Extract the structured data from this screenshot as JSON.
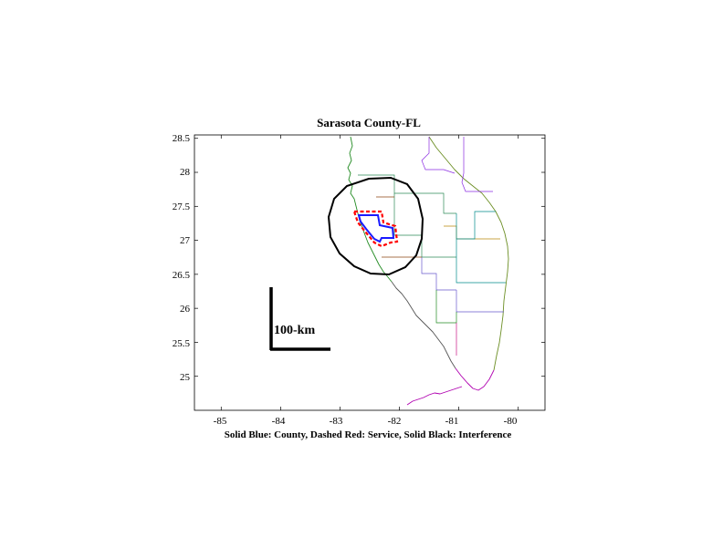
{
  "title": "Sarasota County-FL",
  "caption": "Solid Blue: County, Dashed Red: Service, Solid Black: Interference",
  "scale_bar": {
    "label": "100-km",
    "length_km": 100
  },
  "axes": {
    "x_ticks": [
      "-85",
      "-84",
      "-83",
      "-82",
      "-81",
      "-80"
    ],
    "y_ticks": [
      "28.5",
      "28",
      "27.5",
      "27",
      "26.5",
      "26",
      "25.5",
      "25"
    ],
    "xlim": [
      -85.45,
      -79.55
    ],
    "ylim": [
      24.5,
      28.55
    ]
  },
  "colors": {
    "county": "#1a1aff",
    "service": "#ff0000",
    "interference": "#000000",
    "coast_west": "#228b22",
    "coast_south": "#b000b0",
    "coast_east": "#6b8e23"
  }
}
